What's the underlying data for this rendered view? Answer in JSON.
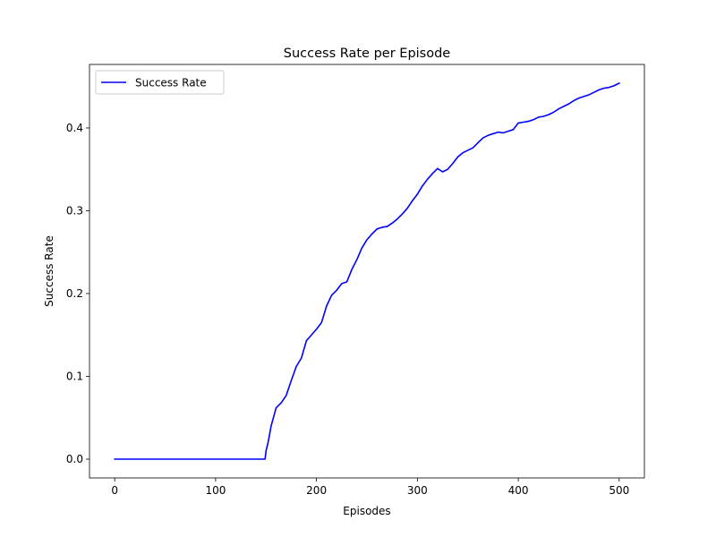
{
  "chart_data": {
    "type": "line",
    "title": "Success Rate per Episode",
    "xlabel": "Episodes",
    "ylabel": "Success Rate",
    "xlim": [
      -25,
      525
    ],
    "ylim": [
      -0.0227,
      0.4767
    ],
    "xticks": [
      0,
      100,
      200,
      300,
      400,
      500
    ],
    "yticks": [
      0.0,
      0.1,
      0.2,
      0.3,
      0.4
    ],
    "grid": false,
    "legend_position": "top-left",
    "series": [
      {
        "name": "Success Rate",
        "color": "#0000ff",
        "x": [
          0,
          50,
          100,
          149,
          150,
          152,
          155,
          160,
          165,
          170,
          175,
          180,
          185,
          190,
          195,
          200,
          205,
          210,
          215,
          220,
          225,
          230,
          235,
          240,
          245,
          250,
          255,
          260,
          265,
          270,
          275,
          280,
          285,
          290,
          295,
          300,
          305,
          310,
          315,
          320,
          325,
          330,
          335,
          340,
          345,
          350,
          355,
          360,
          365,
          370,
          375,
          380,
          385,
          390,
          395,
          400,
          405,
          410,
          415,
          420,
          425,
          430,
          435,
          440,
          445,
          450,
          455,
          460,
          465,
          470,
          475,
          480,
          485,
          490,
          495,
          500
        ],
        "y": [
          0.0,
          0.0,
          0.0,
          0.0,
          0.01,
          0.02,
          0.04,
          0.062,
          0.068,
          0.077,
          0.095,
          0.112,
          0.122,
          0.143,
          0.15,
          0.157,
          0.165,
          0.185,
          0.198,
          0.204,
          0.212,
          0.214,
          0.229,
          0.241,
          0.255,
          0.265,
          0.272,
          0.278,
          0.28,
          0.281,
          0.285,
          0.29,
          0.296,
          0.303,
          0.312,
          0.32,
          0.33,
          0.338,
          0.345,
          0.351,
          0.347,
          0.35,
          0.357,
          0.365,
          0.37,
          0.373,
          0.376,
          0.382,
          0.388,
          0.391,
          0.393,
          0.395,
          0.394,
          0.396,
          0.398,
          0.406,
          0.407,
          0.408,
          0.41,
          0.413,
          0.414,
          0.416,
          0.419,
          0.423,
          0.426,
          0.429,
          0.433,
          0.436,
          0.438,
          0.44,
          0.443,
          0.446,
          0.448,
          0.449,
          0.451,
          0.454
        ]
      }
    ]
  }
}
